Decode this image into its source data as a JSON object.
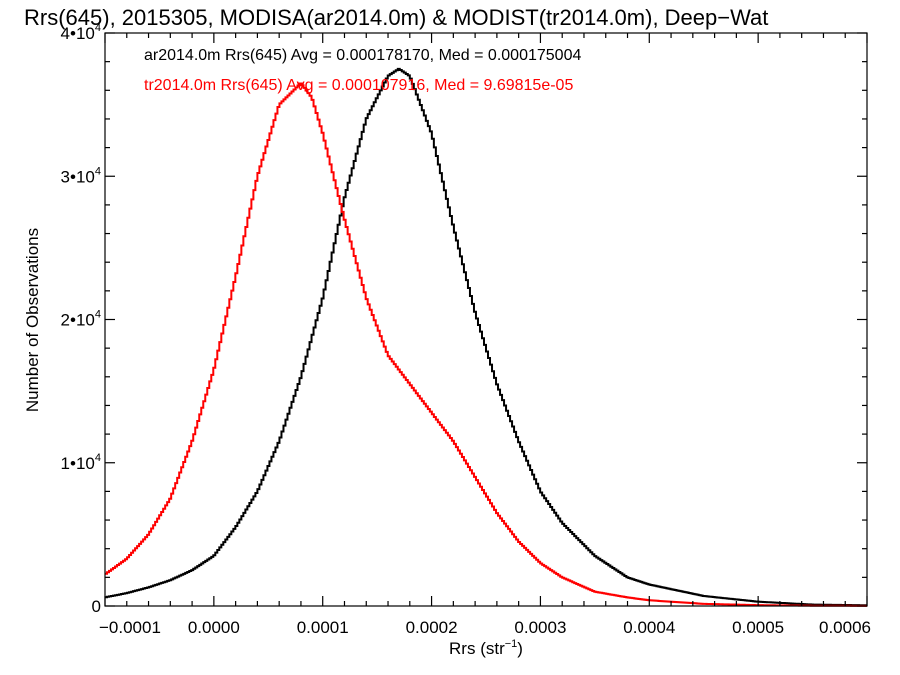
{
  "chart_data": {
    "type": "line",
    "title": "Rrs(645), 2015305, MODISA(ar2014.0m) & MODIST(tr2014.0m), Deep−Wat",
    "xlabel_prefix": "Rrs (str",
    "xlabel_exponent": "−1",
    "xlabel_suffix": ")",
    "ylabel": "Number of Observations",
    "xlim": [
      -0.0001,
      0.0006
    ],
    "ylim": [
      0,
      40000
    ],
    "x_ticks": [
      {
        "value": -0.0001,
        "label": "−0.0001"
      },
      {
        "value": 0.0,
        "label": "0.0000"
      },
      {
        "value": 0.0001,
        "label": "0.0001"
      },
      {
        "value": 0.0002,
        "label": "0.0002"
      },
      {
        "value": 0.0003,
        "label": "0.0003"
      },
      {
        "value": 0.0004,
        "label": "0.0004"
      },
      {
        "value": 0.0005,
        "label": "0.0005"
      },
      {
        "value": 0.0006,
        "label": "0.0006"
      }
    ],
    "y_ticks": [
      {
        "value": 0,
        "label": "0"
      },
      {
        "value": 10000,
        "label": "1•10",
        "exponent": "4"
      },
      {
        "value": 20000,
        "label": "2•10",
        "exponent": "4"
      },
      {
        "value": 30000,
        "label": "3•10",
        "exponent": "4"
      },
      {
        "value": 40000,
        "label": "4•10",
        "exponent": "4"
      }
    ],
    "legend_placement": "top-left",
    "series": [
      {
        "name": "ar2014.0m Rrs(645) Avg = 0.000178170, Med = 0.000175004",
        "color": "#000000",
        "x": [
          -0.0001,
          -8e-05,
          -6e-05,
          -4e-05,
          -2e-05,
          0.0,
          2e-05,
          4e-05,
          6e-05,
          8e-05,
          0.0001,
          0.00012,
          0.00014,
          0.00016,
          0.00017,
          0.00018,
          0.0002,
          0.00022,
          0.00024,
          0.00026,
          0.00028,
          0.0003,
          0.00032,
          0.00035,
          0.00038,
          0.0004,
          0.00045,
          0.0005,
          0.00055,
          0.0006
        ],
        "values": [
          600,
          900,
          1300,
          1800,
          2500,
          3500,
          5500,
          8000,
          11500,
          16000,
          21500,
          28500,
          34000,
          37000,
          37500,
          37000,
          33000,
          26500,
          20500,
          15500,
          11500,
          8000,
          5800,
          3500,
          2000,
          1500,
          700,
          300,
          100,
          50
        ]
      },
      {
        "name": "tr2014.0m Rrs(645) Avg = 0.000107916, Med = 9.69815e-05",
        "color": "#ff0000",
        "x": [
          -0.0001,
          -8e-05,
          -6e-05,
          -4e-05,
          -2e-05,
          0.0,
          2e-05,
          4e-05,
          6e-05,
          8e-05,
          9e-05,
          0.0001,
          0.00012,
          0.00014,
          0.00016,
          0.00018,
          0.0002,
          0.00022,
          0.00024,
          0.00026,
          0.00028,
          0.0003,
          0.00032,
          0.00035,
          0.00038,
          0.0004,
          0.00045,
          0.0005,
          0.00055,
          0.0006
        ],
        "values": [
          2200,
          3300,
          5000,
          7500,
          11500,
          16500,
          23000,
          30000,
          35000,
          36500,
          35500,
          33000,
          27000,
          21500,
          17500,
          15500,
          13500,
          11500,
          9000,
          6500,
          4500,
          3000,
          2000,
          1000,
          600,
          400,
          150,
          60,
          20,
          10
        ]
      }
    ]
  }
}
